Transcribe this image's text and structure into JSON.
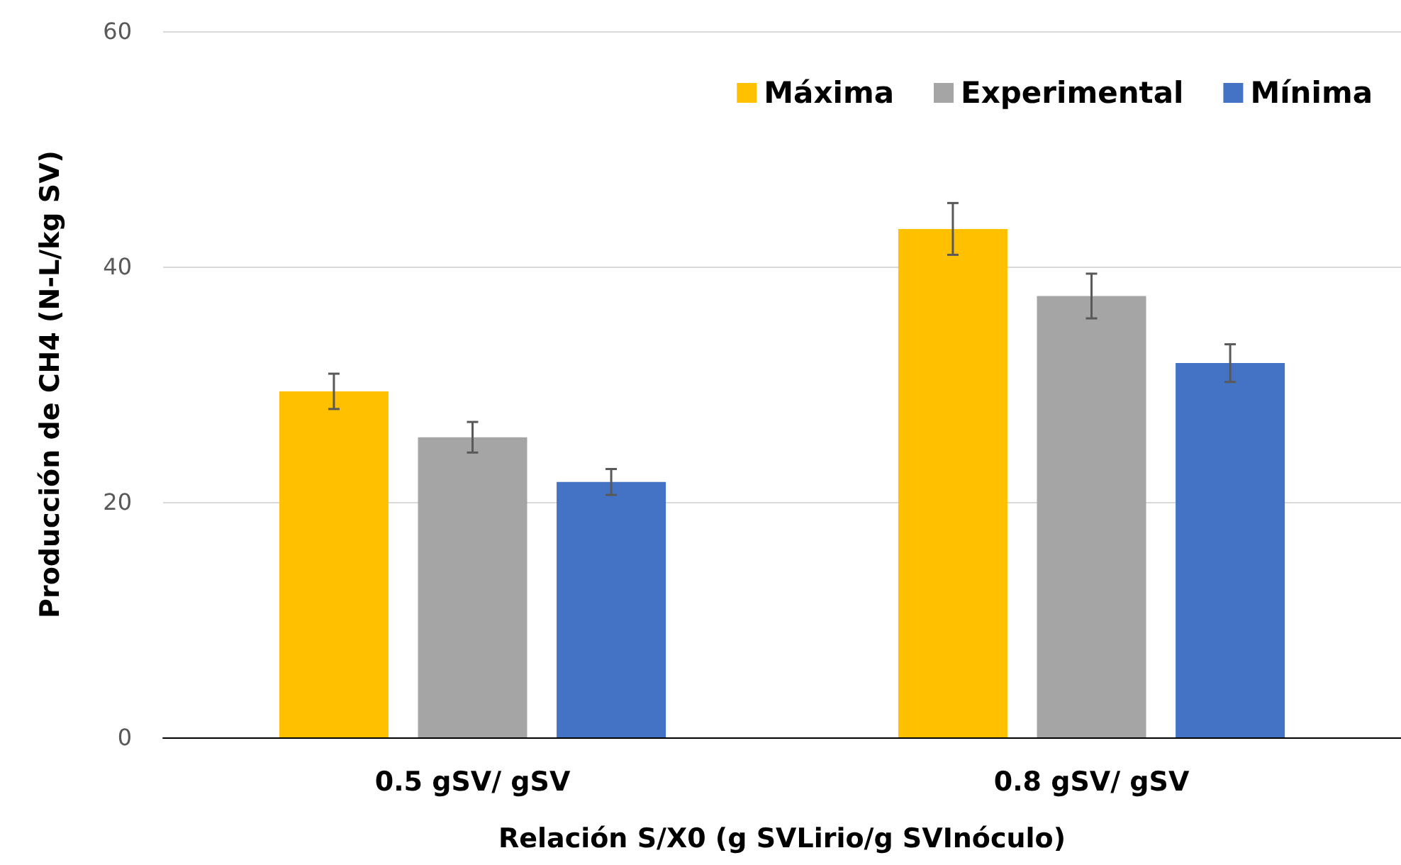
{
  "chart_data": {
    "type": "bar",
    "xlabel": "Relación S/X0 (g SVLirio/g SVInóculo)",
    "ylabel": "Producción de CH4 (N-L/kg SV)",
    "categories": [
      "0.5 gSV/ gSV",
      "0.8 gSV/ gSV"
    ],
    "series": [
      {
        "name": "Máxima",
        "color": "#ffc000",
        "values": [
          29.4,
          43.2
        ],
        "errors": [
          1.5,
          2.2
        ]
      },
      {
        "name": "Experimental",
        "color": "#a5a5a5",
        "values": [
          25.5,
          37.5
        ],
        "errors": [
          1.3,
          1.9
        ]
      },
      {
        "name": "Mínima",
        "color": "#4472c4",
        "values": [
          21.7,
          31.8
        ],
        "errors": [
          1.1,
          1.6
        ]
      }
    ],
    "ylim": [
      0,
      60
    ],
    "yticks": [
      0,
      20,
      40,
      60
    ],
    "grid": "y",
    "legend": "top right"
  }
}
